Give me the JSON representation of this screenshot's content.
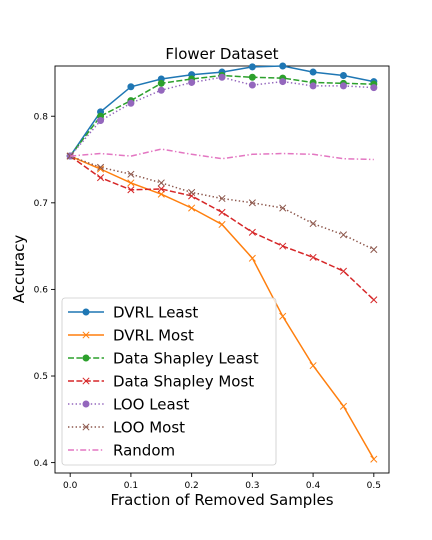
{
  "chart_data": {
    "type": "line",
    "title": "Flower Dataset",
    "xlabel": "Fraction of Removed Samples",
    "ylabel": "Accuracy",
    "xlim": [
      -0.025,
      0.525
    ],
    "ylim": [
      0.388,
      0.858
    ],
    "xticks": [
      0.0,
      0.1,
      0.2,
      0.3,
      0.4,
      0.5
    ],
    "xtick_labels": [
      "0.0",
      "0.1",
      "0.2",
      "0.3",
      "0.4",
      "0.5"
    ],
    "yticks": [
      0.4,
      0.5,
      0.6,
      0.7,
      0.8
    ],
    "ytick_labels": [
      "0.4",
      "0.5",
      "0.6",
      "0.7",
      "0.8"
    ],
    "grid": false,
    "legend_position": "lower-left",
    "x": [
      0.0,
      0.05,
      0.1,
      0.15,
      0.2,
      0.25,
      0.3,
      0.35,
      0.4,
      0.45,
      0.5
    ],
    "series": [
      {
        "name": "DVRL Least",
        "color": "#1f77b4",
        "linestyle": "solid",
        "marker": "circle",
        "values": [
          0.754,
          0.805,
          0.834,
          0.843,
          0.848,
          0.851,
          0.857,
          0.858,
          0.851,
          0.847,
          0.84
        ]
      },
      {
        "name": "DVRL Most",
        "color": "#ff7f0e",
        "linestyle": "solid",
        "marker": "x",
        "values": [
          0.754,
          0.739,
          0.723,
          0.71,
          0.694,
          0.675,
          0.636,
          0.569,
          0.512,
          0.465,
          0.404
        ]
      },
      {
        "name": "Data Shapley Least",
        "color": "#2ca02c",
        "linestyle": "dashed",
        "marker": "circle",
        "values": [
          0.754,
          0.8,
          0.818,
          0.838,
          0.843,
          0.847,
          0.845,
          0.844,
          0.839,
          0.838,
          0.837
        ]
      },
      {
        "name": "Data Shapley Most",
        "color": "#d62728",
        "linestyle": "dashed",
        "marker": "x",
        "values": [
          0.754,
          0.729,
          0.715,
          0.716,
          0.708,
          0.689,
          0.666,
          0.65,
          0.637,
          0.621,
          0.588
        ]
      },
      {
        "name": "LOO Least",
        "color": "#9467bd",
        "linestyle": "dotted",
        "marker": "circle",
        "values": [
          0.754,
          0.795,
          0.815,
          0.83,
          0.839,
          0.845,
          0.836,
          0.84,
          0.835,
          0.835,
          0.833
        ]
      },
      {
        "name": "LOO Most",
        "color": "#8c564b",
        "linestyle": "dotted",
        "marker": "x",
        "values": [
          0.754,
          0.741,
          0.733,
          0.723,
          0.712,
          0.705,
          0.7,
          0.694,
          0.676,
          0.663,
          0.646
        ]
      },
      {
        "name": "Random",
        "color": "#e377c2",
        "linestyle": "dashdot",
        "marker": "none",
        "values": [
          0.754,
          0.757,
          0.754,
          0.762,
          0.756,
          0.751,
          0.756,
          0.757,
          0.756,
          0.751,
          0.75
        ]
      }
    ]
  }
}
